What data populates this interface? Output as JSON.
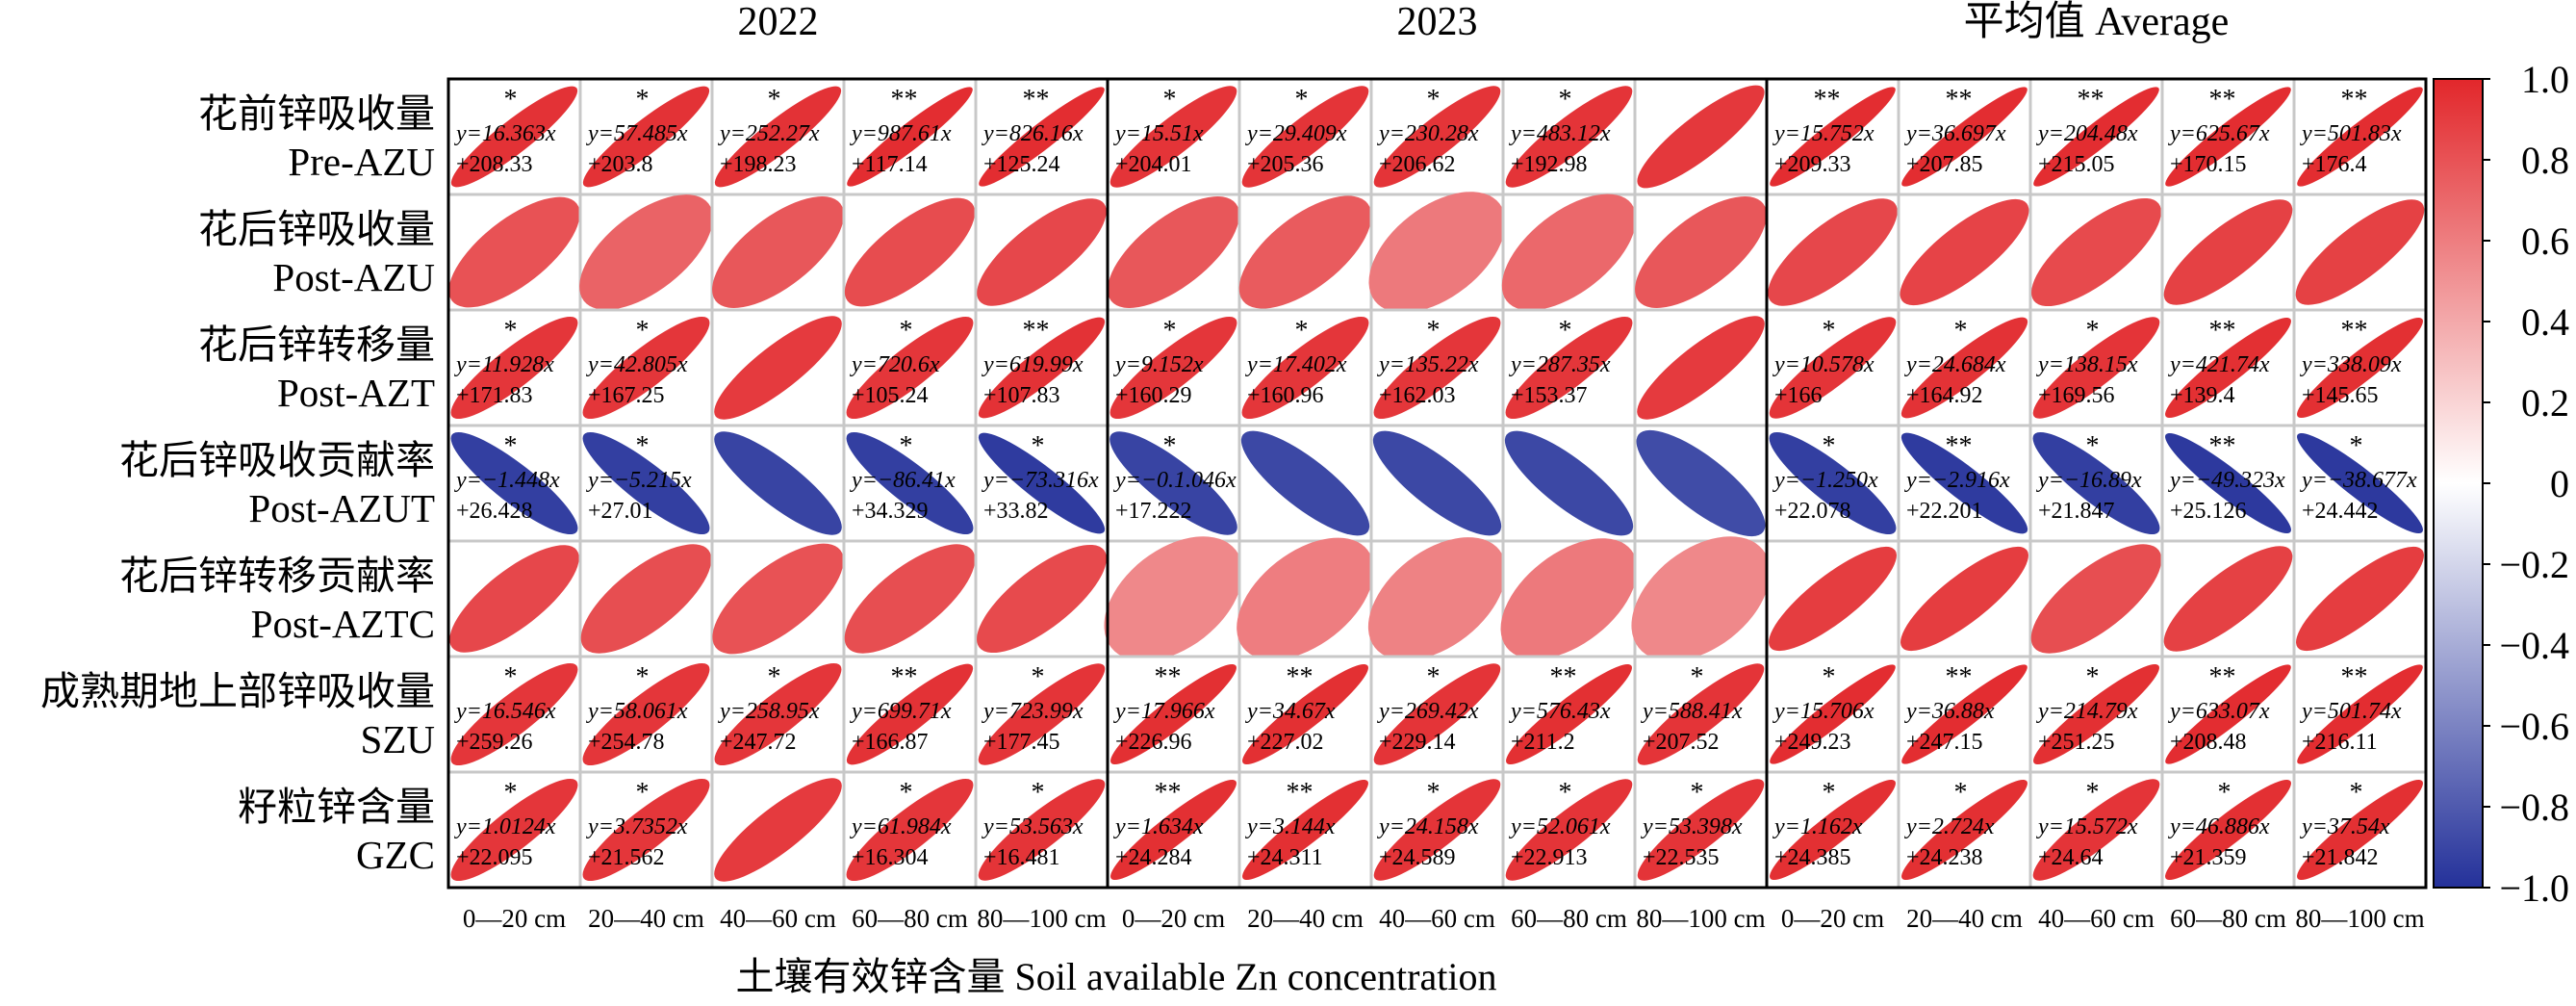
{
  "chart_data": {
    "type": "heatmap",
    "title": "",
    "xlabel": "土壤有效锌含量 Soil available Zn concentration",
    "groups": [
      "2022",
      "2023",
      "平均值 Average"
    ],
    "depths": [
      "0—20 cm",
      "20—40 cm",
      "40—60 cm",
      "60—80 cm",
      "80—100 cm"
    ],
    "rows": [
      {
        "cn": "花前锌吸收量",
        "en": "Pre-AZU"
      },
      {
        "cn": "花后锌吸收量",
        "en": "Post-AZU"
      },
      {
        "cn": "花后锌转移量",
        "en": "Post-AZT"
      },
      {
        "cn": "花后锌吸收贡献率",
        "en": "Post-AZUT"
      },
      {
        "cn": "花后锌转移贡献率",
        "en": "Post-AZTC"
      },
      {
        "cn": "成熟期地上部锌吸收量",
        "en": "SZU"
      },
      {
        "cn": "籽粒锌含量",
        "en": "GZC"
      }
    ],
    "colorbar": {
      "ticks": [
        "1.0",
        "0.8",
        "0.6",
        "0.4",
        "0.2",
        "0",
        "−0.2",
        "−0.4",
        "−0.6",
        "−0.8",
        "−1.0"
      ],
      "min": -1.0,
      "max": 1.0,
      "colors": {
        "neg": "#24319a",
        "mid": "#ffffff",
        "pos": "#e2272b"
      }
    },
    "correlations": [
      [
        0.95,
        0.95,
        0.95,
        0.97,
        0.97,
        0.94,
        0.94,
        0.94,
        0.94,
        0.92,
        0.97,
        0.97,
        0.97,
        0.97,
        0.97
      ],
      [
        0.8,
        0.72,
        0.78,
        0.83,
        0.85,
        0.78,
        0.76,
        0.62,
        0.7,
        0.78,
        0.85,
        0.87,
        0.84,
        0.88,
        0.88
      ],
      [
        0.93,
        0.93,
        0.91,
        0.93,
        0.95,
        0.93,
        0.93,
        0.93,
        0.93,
        0.91,
        0.94,
        0.95,
        0.94,
        0.96,
        0.96
      ],
      [
        -0.93,
        -0.93,
        -0.91,
        -0.93,
        -0.95,
        -0.91,
        -0.89,
        -0.89,
        -0.89,
        -0.87,
        -0.93,
        -0.95,
        -0.93,
        -0.96,
        -0.96
      ],
      [
        0.85,
        0.82,
        0.8,
        0.82,
        0.84,
        0.55,
        0.6,
        0.58,
        0.62,
        0.55,
        0.9,
        0.9,
        0.82,
        0.88,
        0.9
      ],
      [
        0.93,
        0.93,
        0.93,
        0.95,
        0.94,
        0.96,
        0.96,
        0.94,
        0.96,
        0.94,
        0.97,
        0.97,
        0.96,
        0.97,
        0.97
      ],
      [
        0.93,
        0.93,
        0.91,
        0.93,
        0.94,
        0.96,
        0.96,
        0.94,
        0.94,
        0.94,
        0.96,
        0.96,
        0.94,
        0.96,
        0.96
      ]
    ],
    "significance": [
      [
        "*",
        "*",
        "*",
        "**",
        "**",
        "*",
        "*",
        "*",
        "*",
        "",
        "**",
        "**",
        "**",
        "**",
        "**"
      ],
      [
        "",
        "",
        "",
        "",
        "",
        "",
        "",
        "",
        "",
        "",
        "",
        "",
        "",
        "",
        ""
      ],
      [
        "*",
        "*",
        "",
        "*",
        "**",
        "*",
        "*",
        "*",
        "*",
        "",
        "*",
        "*",
        "*",
        "**",
        "**"
      ],
      [
        "*",
        "*",
        "",
        "*",
        "*",
        "*",
        "",
        "",
        "",
        "",
        "*",
        "**",
        "*",
        "**",
        "*"
      ],
      [
        "",
        "",
        "",
        "",
        "",
        "",
        "",
        "",
        "",
        "",
        "",
        "",
        "",
        "",
        ""
      ],
      [
        "*",
        "*",
        "*",
        "**",
        "*",
        "**",
        "**",
        "*",
        "**",
        "*",
        "*",
        "**",
        "*",
        "**",
        "**"
      ],
      [
        "*",
        "*",
        "",
        "*",
        "*",
        "**",
        "**",
        "*",
        "*",
        "*",
        "*",
        "*",
        "*",
        "*",
        "*"
      ]
    ],
    "equations": [
      [
        [
          "y=16.363x",
          "+208.33"
        ],
        [
          "y=57.485x",
          "+203.8"
        ],
        [
          "y=252.27x",
          "+198.23"
        ],
        [
          "y=987.61x",
          "+117.14"
        ],
        [
          "y=826.16x",
          "+125.24"
        ],
        [
          "y=15.51x",
          "+204.01"
        ],
        [
          "y=29.409x",
          "+205.36"
        ],
        [
          "y=230.28x",
          "+206.62"
        ],
        [
          "y=483.12x",
          "+192.98"
        ],
        null,
        [
          "y=15.752x",
          "+209.33"
        ],
        [
          "y=36.697x",
          "+207.85"
        ],
        [
          "y=204.48x",
          "+215.05"
        ],
        [
          "y=625.67x",
          "+170.15"
        ],
        [
          "y=501.83x",
          "+176.4"
        ]
      ],
      [
        null,
        null,
        null,
        null,
        null,
        null,
        null,
        null,
        null,
        null,
        null,
        null,
        null,
        null,
        null
      ],
      [
        [
          "y=11.928x",
          "+171.83"
        ],
        [
          "y=42.805x",
          "+167.25"
        ],
        null,
        [
          "y=720.6x",
          "+105.24"
        ],
        [
          "y=619.99x",
          "+107.83"
        ],
        [
          "y=9.152x",
          "+160.29"
        ],
        [
          "y=17.402x",
          "+160.96"
        ],
        [
          "y=135.22x",
          "+162.03"
        ],
        [
          "y=287.35x",
          "+153.37"
        ],
        null,
        [
          "y=10.578x",
          "+166"
        ],
        [
          "y=24.684x",
          "+164.92"
        ],
        [
          "y=138.15x",
          "+169.56"
        ],
        [
          "y=421.74x",
          "+139.4"
        ],
        [
          "y=338.09x",
          "+145.65"
        ]
      ],
      [
        [
          "y=−1.448x",
          "+26.428"
        ],
        [
          "y=−5.215x",
          "+27.01"
        ],
        null,
        [
          "y=−86.41x",
          "+34.329"
        ],
        [
          "y=−73.316x",
          "+33.82"
        ],
        [
          "y=−0.1.046x",
          "+17.222"
        ],
        null,
        null,
        null,
        null,
        [
          "y=−1.250x",
          "+22.078"
        ],
        [
          "y=−2.916x",
          "+22.201"
        ],
        [
          "y=−16.89x",
          "+21.847"
        ],
        [
          "y=−49.323x",
          "+25.126"
        ],
        [
          "y=−38.677x",
          "+24.442"
        ]
      ],
      [
        null,
        null,
        null,
        null,
        null,
        null,
        null,
        null,
        null,
        null,
        null,
        null,
        null,
        null,
        null
      ],
      [
        [
          "y=16.546x",
          "+259.26"
        ],
        [
          "y=58.061x",
          "+254.78"
        ],
        [
          "y=258.95x",
          "+247.72"
        ],
        [
          "y=699.71x",
          "+166.87"
        ],
        [
          "y=723.99x",
          "+177.45"
        ],
        [
          "y=17.966x",
          "+226.96"
        ],
        [
          "y=34.67x",
          "+227.02"
        ],
        [
          "y=269.42x",
          "+229.14"
        ],
        [
          "y=576.43x",
          "+211.2"
        ],
        [
          "y=588.41x",
          "+207.52"
        ],
        [
          "y=15.706x",
          "+249.23"
        ],
        [
          "y=36.88x",
          "+247.15"
        ],
        [
          "y=214.79x",
          "+251.25"
        ],
        [
          "y=633.07x",
          "+208.48"
        ],
        [
          "y=501.74x",
          "+216.11"
        ]
      ],
      [
        [
          "y=1.0124x",
          "+22.095"
        ],
        [
          "y=3.7352x",
          "+21.562"
        ],
        null,
        [
          "y=61.984x",
          "+16.304"
        ],
        [
          "y=53.563x",
          "+16.481"
        ],
        [
          "y=1.634x",
          "+24.284"
        ],
        [
          "y=3.144x",
          "+24.311"
        ],
        [
          "y=24.158x",
          "+24.589"
        ],
        [
          "y=52.061x",
          "+22.913"
        ],
        [
          "y=53.398x",
          "+22.535"
        ],
        [
          "y=1.162x",
          "+24.385"
        ],
        [
          "y=2.724x",
          "+24.238"
        ],
        [
          "y=15.572x",
          "+24.64"
        ],
        [
          "y=46.886x",
          "+21.359"
        ],
        [
          "y=37.54x",
          "+21.842"
        ]
      ]
    ]
  }
}
